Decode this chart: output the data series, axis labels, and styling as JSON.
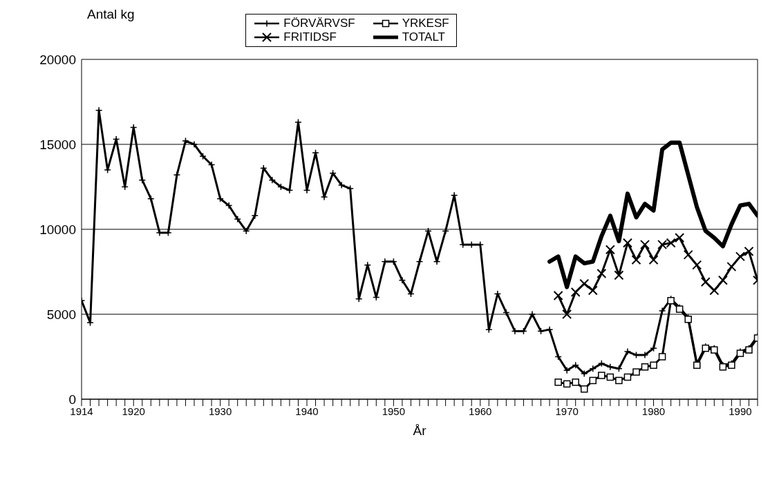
{
  "chart_data": {
    "type": "line",
    "xlabel": "År",
    "ylabel": "Antal kg",
    "xlim": [
      1914,
      1992
    ],
    "ylim": [
      0,
      20000
    ],
    "yticks": [
      0,
      5000,
      10000,
      15000,
      20000
    ],
    "xticks": [
      1914,
      {
        "value": 1915,
        "label": null
      },
      {
        "value": 1916,
        "label": null
      },
      {
        "value": 1917,
        "label": null
      },
      {
        "value": 1918,
        "label": null
      },
      {
        "value": 1919,
        "label": null
      },
      1920,
      {
        "value": 1921,
        "label": null
      },
      {
        "value": 1922,
        "label": null
      },
      {
        "value": 1923,
        "label": null
      },
      {
        "value": 1924,
        "label": null
      },
      {
        "value": 1925,
        "label": null
      },
      {
        "value": 1926,
        "label": null
      },
      {
        "value": 1927,
        "label": null
      },
      {
        "value": 1928,
        "label": null
      },
      {
        "value": 1929,
        "label": null
      },
      1930,
      {
        "value": 1931,
        "label": null
      },
      {
        "value": 1932,
        "label": null
      },
      {
        "value": 1933,
        "label": null
      },
      {
        "value": 1934,
        "label": null
      },
      {
        "value": 1935,
        "label": null
      },
      {
        "value": 1936,
        "label": null
      },
      {
        "value": 1937,
        "label": null
      },
      {
        "value": 1938,
        "label": null
      },
      {
        "value": 1939,
        "label": null
      },
      1940,
      {
        "value": 1941,
        "label": null
      },
      {
        "value": 1942,
        "label": null
      },
      {
        "value": 1943,
        "label": null
      },
      {
        "value": 1944,
        "label": null
      },
      {
        "value": 1945,
        "label": null
      },
      {
        "value": 1946,
        "label": null
      },
      {
        "value": 1947,
        "label": null
      },
      {
        "value": 1948,
        "label": null
      },
      {
        "value": 1949,
        "label": null
      },
      1950,
      {
        "value": 1951,
        "label": null
      },
      {
        "value": 1952,
        "label": null
      },
      {
        "value": 1953,
        "label": null
      },
      {
        "value": 1954,
        "label": null
      },
      {
        "value": 1955,
        "label": null
      },
      {
        "value": 1956,
        "label": null
      },
      {
        "value": 1957,
        "label": null
      },
      {
        "value": 1958,
        "label": null
      },
      {
        "value": 1959,
        "label": null
      },
      1960,
      {
        "value": 1961,
        "label": null
      },
      {
        "value": 1962,
        "label": null
      },
      {
        "value": 1963,
        "label": null
      },
      {
        "value": 1964,
        "label": null
      },
      {
        "value": 1965,
        "label": null
      },
      {
        "value": 1966,
        "label": null
      },
      {
        "value": 1967,
        "label": null
      },
      {
        "value": 1968,
        "label": null
      },
      {
        "value": 1969,
        "label": null
      },
      1970,
      {
        "value": 1971,
        "label": null
      },
      {
        "value": 1972,
        "label": null
      },
      {
        "value": 1973,
        "label": null
      },
      {
        "value": 1974,
        "label": null
      },
      {
        "value": 1975,
        "label": null
      },
      {
        "value": 1976,
        "label": null
      },
      {
        "value": 1977,
        "label": null
      },
      {
        "value": 1978,
        "label": null
      },
      {
        "value": 1979,
        "label": null
      },
      1980,
      {
        "value": 1981,
        "label": null
      },
      {
        "value": 1982,
        "label": null
      },
      {
        "value": 1983,
        "label": null
      },
      {
        "value": 1984,
        "label": null
      },
      {
        "value": 1985,
        "label": null
      },
      {
        "value": 1986,
        "label": null
      },
      {
        "value": 1987,
        "label": null
      },
      {
        "value": 1988,
        "label": null
      },
      {
        "value": 1989,
        "label": null
      },
      1990,
      {
        "value": 1991,
        "label": null
      },
      {
        "value": 1992,
        "label": null
      }
    ],
    "grid": "y",
    "legend": "top",
    "line_style": "solid",
    "series": [
      {
        "name": "FÖRVÄRVSF",
        "color": "#000000",
        "marker": "cross",
        "x": [
          1914,
          1915,
          1916,
          1917,
          1918,
          1919,
          1920,
          1921,
          1922,
          1923,
          1924,
          1925,
          1926,
          1927,
          1928,
          1929,
          1930,
          1931,
          1932,
          1933,
          1934,
          1935,
          1936,
          1937,
          1938,
          1939,
          1940,
          1941,
          1942,
          1943,
          1944,
          1945,
          1946,
          1947,
          1948,
          1949,
          1950,
          1951,
          1952,
          1953,
          1954,
          1955,
          1956,
          1957,
          1958,
          1959,
          1960,
          1961,
          1962,
          1963,
          1964,
          1965,
          1966,
          1967,
          1968,
          1969,
          1970,
          1971,
          1972,
          1973,
          1974,
          1975,
          1976,
          1977,
          1978,
          1979,
          1980,
          1981,
          1982,
          1983,
          1984,
          1985,
          1986,
          1987,
          1988,
          1989,
          1990,
          1991,
          1992
        ],
        "values": [
          5800,
          4500,
          17000,
          13500,
          15300,
          12500,
          16000,
          12900,
          11800,
          9800,
          9800,
          13200,
          15200,
          15000,
          14300,
          13800,
          11800,
          11400,
          10600,
          9900,
          10800,
          13600,
          12900,
          12500,
          12300,
          16300,
          12300,
          14500,
          11900,
          13300,
          12600,
          12400,
          5900,
          7900,
          6000,
          8100,
          8100,
          7000,
          6200,
          8100,
          9900,
          8100,
          9900,
          12000,
          9100,
          9100,
          9100,
          4100,
          6200,
          5100,
          4000,
          4000,
          5000,
          4000,
          4100,
          2500,
          1700,
          2000,
          1500,
          1800,
          2100,
          1900,
          1800,
          2800,
          2600,
          2600,
          3000,
          5200,
          5900,
          5400,
          4800,
          2100,
          3100,
          3000,
          2000,
          2100,
          2800,
          3000,
          3700
        ]
      },
      {
        "name": "FRITIDSF",
        "color": "#000000",
        "marker": "x",
        "x": [
          1969,
          1970,
          1971,
          1972,
          1973,
          1974,
          1975,
          1976,
          1977,
          1978,
          1979,
          1980,
          1981,
          1982,
          1983,
          1984,
          1985,
          1986,
          1987,
          1988,
          1989,
          1990,
          1991,
          1992
        ],
        "values": [
          6100,
          5000,
          6300,
          6800,
          6400,
          7400,
          8800,
          7300,
          9200,
          8200,
          9100,
          8200,
          9100,
          9200,
          9500,
          8500,
          7900,
          6900,
          6400,
          7000,
          7800,
          8400,
          8700,
          7000
        ]
      },
      {
        "name": "YRKESF",
        "color": "#000000",
        "marker": "square",
        "x": [
          1969,
          1970,
          1971,
          1972,
          1973,
          1974,
          1975,
          1976,
          1977,
          1978,
          1979,
          1980,
          1981,
          1982,
          1983,
          1984,
          1985,
          1986,
          1987,
          1988,
          1989,
          1990,
          1991,
          1992
        ],
        "values": [
          1000,
          900,
          1000,
          600,
          1100,
          1400,
          1300,
          1100,
          1300,
          1600,
          1900,
          2000,
          2500,
          5800,
          5300,
          4700,
          2000,
          3000,
          2900,
          1900,
          2000,
          2700,
          2900,
          3600
        ]
      },
      {
        "name": "TOTALT",
        "color": "#000000",
        "marker": "none",
        "x": [
          1968,
          1969,
          1970,
          1971,
          1972,
          1973,
          1974,
          1975,
          1976,
          1977,
          1978,
          1979,
          1980,
          1981,
          1982,
          1983,
          1984,
          1985,
          1986,
          1987,
          1988,
          1989,
          1990,
          1991,
          1992
        ],
        "values": [
          8100,
          8400,
          6600,
          8400,
          8000,
          8100,
          9600,
          10800,
          9300,
          12100,
          10700,
          11500,
          11100,
          14700,
          15100,
          15100,
          13200,
          11300,
          9900,
          9500,
          9000,
          10300,
          11400,
          11500,
          10800
        ]
      }
    ]
  }
}
